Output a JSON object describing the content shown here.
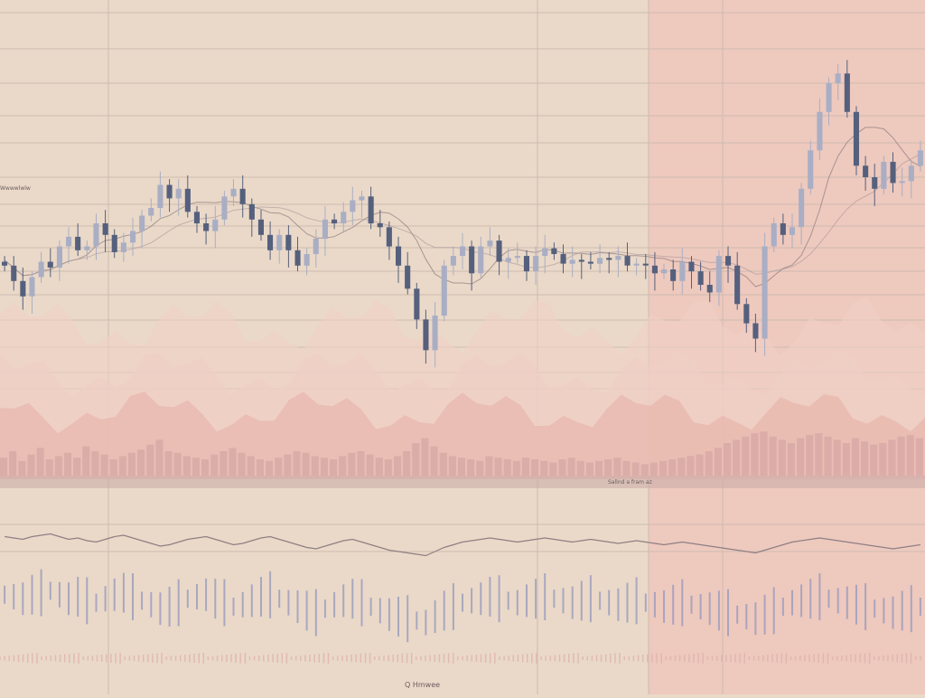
{
  "theme": {
    "background": "#ead9c8",
    "highlight_zone": "#efc3bb",
    "candle_up": "#a9aec4",
    "candle_down": "#55607d",
    "gridline": "#cdbcb0",
    "area_light": "#f0cfc4",
    "area_mid": "#e7b3aa",
    "volume": "#d5a7a4",
    "separator": "#c9a9a6",
    "oscillator_line": "#8e7f84",
    "osc_bar": "#9a9bbf",
    "noise_band": "#dfb0aa"
  },
  "labels": {
    "top_left_note": "Wwwwlwlw",
    "separator_note": "Sallnd  a  fram  az",
    "bottom_note": "Q Hmwee"
  },
  "chart_data": [
    {
      "type": "candlestick",
      "title": "",
      "xlabel": "",
      "ylabel": "",
      "grid": true,
      "highlighted_region": "right portion",
      "close": [
        50,
        42,
        34,
        44,
        52,
        49,
        60,
        65,
        58,
        60,
        72,
        66,
        57,
        62,
        68,
        76,
        80,
        92,
        85,
        90,
        78,
        72,
        68,
        74,
        86,
        90,
        82,
        74,
        66,
        58,
        66,
        58,
        50,
        56,
        64,
        74,
        72,
        78,
        84,
        86,
        72,
        70,
        60,
        50,
        38,
        22,
        6,
        24,
        50,
        55,
        60,
        46,
        60,
        63,
        52,
        54,
        55,
        47,
        55,
        59,
        56,
        51,
        53,
        52,
        51,
        54,
        53,
        55,
        50,
        51,
        50,
        46,
        48,
        42,
        52,
        47,
        40,
        36,
        55,
        50,
        30,
        20,
        12,
        60,
        72,
        66,
        70,
        90,
        110,
        130,
        145,
        150,
        130,
        102,
        96,
        90,
        104,
        93,
        94,
        102,
        110
      ],
      "volume": [
        22,
        30,
        18,
        26,
        34,
        20,
        24,
        28,
        22,
        36,
        30,
        26,
        20,
        24,
        28,
        32,
        38,
        44,
        30,
        28,
        24,
        22,
        20,
        26,
        30,
        34,
        28,
        24,
        20,
        18,
        22,
        26,
        30,
        28,
        24,
        22,
        20,
        24,
        28,
        30,
        26,
        22,
        20,
        24,
        30,
        40,
        46,
        36,
        28,
        24,
        22,
        20,
        18,
        24,
        22,
        20,
        18,
        22,
        20,
        18,
        16,
        20,
        22,
        18,
        16,
        18,
        20,
        22,
        18,
        16,
        14,
        16,
        18,
        20,
        22,
        24,
        26,
        30,
        34,
        40,
        44,
        48,
        52,
        54,
        48,
        44,
        40,
        46,
        50,
        52,
        48,
        44,
        40,
        46,
        42,
        38,
        40,
        44,
        48,
        50,
        46
      ],
      "oscillator": [
        62,
        60,
        58,
        62,
        64,
        66,
        62,
        58,
        60,
        56,
        54,
        58,
        62,
        64,
        60,
        56,
        52,
        48,
        50,
        54,
        58,
        60,
        62,
        58,
        54,
        50,
        52,
        56,
        60,
        62,
        58,
        54,
        50,
        46,
        44,
        48,
        52,
        56,
        58,
        54,
        50,
        46,
        42,
        40,
        38,
        36,
        34,
        40,
        46,
        50,
        54,
        56,
        58,
        60,
        58,
        56,
        54,
        56,
        58,
        60,
        58,
        56,
        54,
        56,
        58,
        56,
        54,
        52,
        54,
        56,
        54,
        52,
        50,
        52,
        54,
        52,
        50,
        48,
        46,
        44,
        42,
        40,
        38,
        42,
        46,
        50,
        54,
        56,
        58,
        60,
        58,
        56,
        54,
        52,
        50,
        48,
        46,
        44,
        46,
        48,
        50
      ],
      "ylim": [
        0,
        160
      ]
    }
  ]
}
